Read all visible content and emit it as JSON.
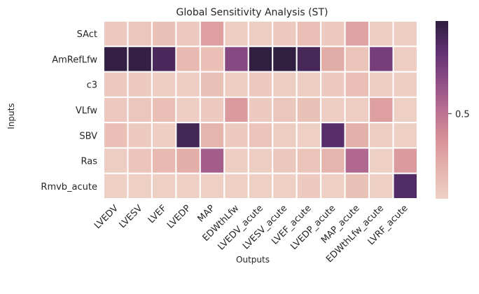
{
  "chart_data": {
    "type": "heatmap",
    "title": "Global Sensitivity Analysis (ST)",
    "xlabel": "Outputs",
    "ylabel": "Inputs",
    "x_categories": [
      "LVEDV",
      "LVESV",
      "LVEF",
      "LVEDP",
      "MAP",
      "EDWthLfw",
      "LVEDV_acute",
      "LVESV_acute",
      "LVEF_acute",
      "LVEDP_acute",
      "MAP_acute",
      "EDWthLfw_acute",
      "LVRF_acute"
    ],
    "y_categories": [
      "SAct",
      "AmRefLfw",
      "c3",
      "VLfw",
      "SBV",
      "Ras",
      "Rmvb_acute"
    ],
    "values": [
      [
        0.08,
        0.1,
        0.13,
        0.09,
        0.3,
        0.07,
        0.07,
        0.09,
        0.14,
        0.08,
        0.28,
        0.07,
        0.06
      ],
      [
        0.98,
        0.98,
        0.9,
        0.17,
        0.14,
        0.7,
        0.99,
        0.99,
        0.92,
        0.24,
        0.12,
        0.76,
        0.07
      ],
      [
        0.09,
        0.08,
        0.06,
        0.07,
        0.13,
        0.07,
        0.08,
        0.07,
        0.06,
        0.08,
        0.14,
        0.07,
        0.06
      ],
      [
        0.09,
        0.1,
        0.14,
        0.06,
        0.08,
        0.32,
        0.08,
        0.1,
        0.13,
        0.06,
        0.07,
        0.3,
        0.05
      ],
      [
        0.14,
        0.08,
        0.06,
        0.93,
        0.2,
        0.08,
        0.11,
        0.07,
        0.05,
        0.86,
        0.22,
        0.07,
        0.05
      ],
      [
        0.07,
        0.11,
        0.17,
        0.23,
        0.6,
        0.06,
        0.07,
        0.1,
        0.12,
        0.2,
        0.55,
        0.05,
        0.32
      ],
      [
        0.05,
        0.05,
        0.05,
        0.05,
        0.05,
        0.05,
        0.05,
        0.05,
        0.08,
        0.05,
        0.13,
        0.05,
        0.88
      ]
    ],
    "colorbar": {
      "ticks": [
        0.5
      ],
      "tick_labels": [
        "0.5"
      ],
      "vmin": 0.04,
      "vmax": 1.0
    },
    "colormap_stops": [
      "#efd1c6",
      "#e5b4ac",
      "#d89299",
      "#b86f91",
      "#8d4c85",
      "#5e3070",
      "#2d1e3e"
    ],
    "grid": false,
    "cell_separator_color": "#ffffff",
    "legend": "none"
  }
}
